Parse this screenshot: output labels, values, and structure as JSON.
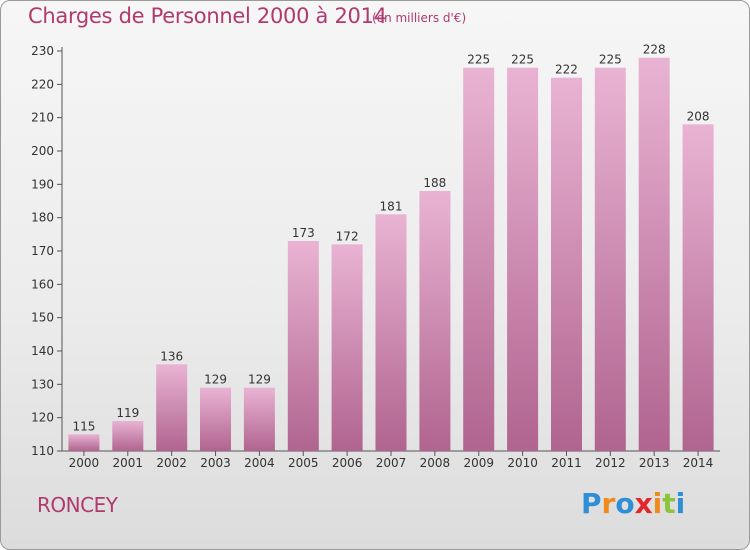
{
  "header": {
    "title": "Charges de Personnel 2000 à 2014",
    "subtitle": "(en milliers d'€)"
  },
  "footer": {
    "commune": "RONCEY",
    "logo": {
      "letters": [
        "P",
        "r",
        "o",
        "x",
        "i",
        "t",
        "i"
      ],
      "colors": [
        "#2e8fd6",
        "#f08a1c",
        "#2e8fd6",
        "#e3262d",
        "#f08a1c",
        "#8cc43c",
        "#2e8fd6"
      ]
    }
  },
  "colors": {
    "bar_light": "#e9b3d3",
    "bar_dark": "#b0648f",
    "text_accent": "#b03a6e"
  },
  "chart_data": {
    "type": "bar",
    "title": "Charges de Personnel 2000 à 2014",
    "subtitle": "(en milliers d'€)",
    "categories": [
      "2000",
      "2001",
      "2002",
      "2003",
      "2004",
      "2005",
      "2006",
      "2007",
      "2008",
      "2009",
      "2010",
      "2011",
      "2012",
      "2013",
      "2014"
    ],
    "values": [
      115,
      119,
      136,
      129,
      129,
      173,
      172,
      181,
      188,
      225,
      225,
      222,
      225,
      228,
      208
    ],
    "ylim": [
      110,
      230
    ],
    "yticks": [
      110,
      120,
      130,
      140,
      150,
      160,
      170,
      180,
      190,
      200,
      210,
      220,
      230
    ],
    "grid": false,
    "legend": "none"
  }
}
